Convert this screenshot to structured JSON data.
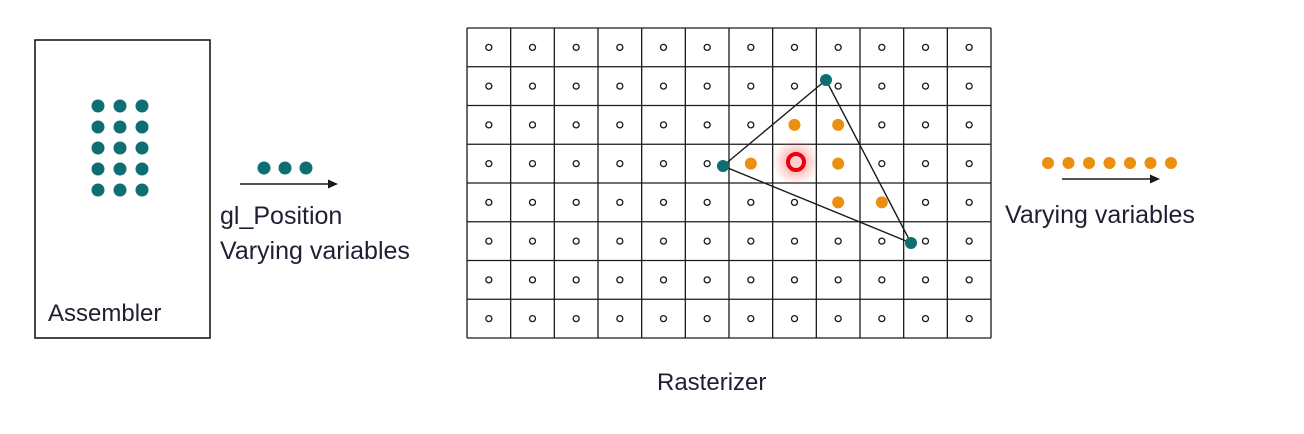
{
  "assembler": {
    "label": "Assembler"
  },
  "input_arrow": {
    "line1": "gl_Position",
    "line2": "Varying variables"
  },
  "rasterizer": {
    "label": "Rasterizer",
    "rows": 8,
    "cols": 12
  },
  "output_arrow": {
    "label": "Varying variables"
  },
  "colors": {
    "vertex": "#0e6f72",
    "fragment": "#ec8f0e",
    "highlight": "#e8000f",
    "grid": "#1a1a1a",
    "text": "#1e1f33"
  },
  "icons": {
    "vertex_dot": "teal-filled-circle",
    "fragment_dot": "orange-filled-circle",
    "sample_point": "hollow-small-circle",
    "highlight": "red-glow-ring"
  }
}
